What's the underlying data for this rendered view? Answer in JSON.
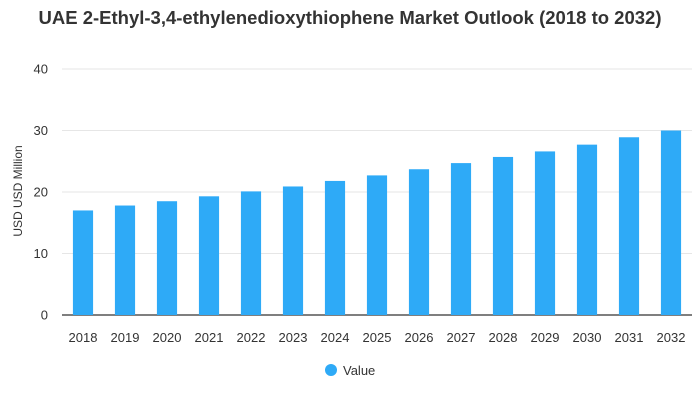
{
  "chart_data": {
    "type": "bar",
    "title": "UAE 2-Ethyl-3,4-ethylenedioxythiophene Market Outlook (2018 to 2032)",
    "categories": [
      "2018",
      "2019",
      "2020",
      "2021",
      "2022",
      "2023",
      "2024",
      "2025",
      "2026",
      "2027",
      "2028",
      "2029",
      "2030",
      "2031",
      "2032"
    ],
    "series": [
      {
        "name": "Value",
        "values": [
          17.0,
          17.8,
          18.5,
          19.3,
          20.1,
          20.9,
          21.8,
          22.7,
          23.7,
          24.7,
          25.7,
          26.6,
          27.7,
          28.9,
          30.0
        ]
      }
    ],
    "xlabel": "",
    "ylabel": "USD USD Million",
    "ylim": [
      0,
      40
    ],
    "yticks": [
      0,
      10,
      20,
      30,
      40
    ],
    "grid": true,
    "legend_position": "bottom",
    "bar_color": "#2eaaf7"
  }
}
